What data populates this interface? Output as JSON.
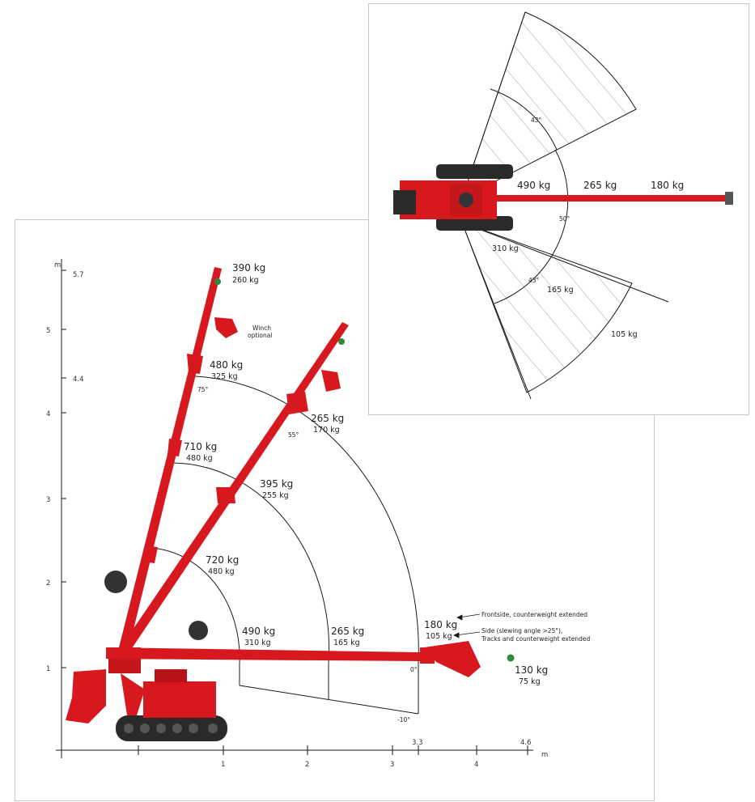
{
  "colors": {
    "machine_red": "#d7191f",
    "dark": "#2a2a2a",
    "line": "#1a1a1a",
    "hatch": "#888888",
    "boom_green": "#2e8b3a"
  },
  "side_view": {
    "axes": {
      "y_unit": "m",
      "y_ticks": [
        "1",
        "2",
        "3",
        "4",
        "5"
      ],
      "y_marks": [
        "5.7",
        "4.4"
      ],
      "x_unit": "m",
      "x_ticks": [
        "1",
        "2",
        "3",
        "4"
      ],
      "x_marks": [
        "3.3",
        "4.6"
      ]
    },
    "loads": {
      "tip_75": {
        "main": "390 kg",
        "sub": "260 kg"
      },
      "winch": {
        "line1": "Winch",
        "line2": "optional"
      },
      "r3_75": {
        "main": "480 kg",
        "sub": "325 kg"
      },
      "r2_75": {
        "main": "710 kg",
        "sub": "480 kg"
      },
      "r1_75": {
        "main": "720 kg",
        "sub": "480 kg"
      },
      "r2_55": {
        "main": "395 kg",
        "sub": "255 kg"
      },
      "r3_55": {
        "main": "265 kg",
        "sub": "170 kg"
      },
      "r1_0": {
        "main": "490 kg",
        "sub": "310 kg"
      },
      "r2_0": {
        "main": "265 kg",
        "sub": "165 kg"
      },
      "r3_0": {
        "main": "180 kg",
        "sub": "105 kg"
      },
      "tip_0": {
        "main": "130 kg",
        "sub": "75 kg"
      }
    },
    "angles": {
      "a75": "75°",
      "a55": "55°",
      "a0": "0°",
      "am10": "-10°"
    },
    "notes": {
      "front": "Frontside, counterweight extended",
      "side1": "Side (slewing angle >25°),",
      "side2": "Tracks and counterweight extended"
    }
  },
  "top_view": {
    "loads": {
      "f1": "490 kg",
      "f2": "265 kg",
      "f3": "180 kg",
      "s1": "310 kg",
      "s2": "165 kg",
      "s3": "105 kg"
    },
    "angles": {
      "upper43": "43°",
      "mid50": "50°",
      "lower43": "43°"
    }
  }
}
